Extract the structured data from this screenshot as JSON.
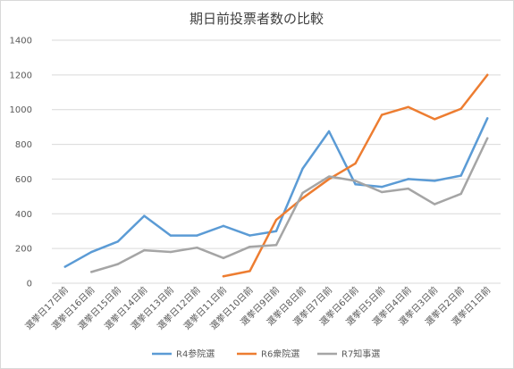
{
  "chart_data": {
    "type": "line",
    "title": "期日前投票者数の比較",
    "xlabel": "",
    "ylabel": "",
    "ylim": [
      0,
      1400
    ],
    "yticks": [
      0,
      200,
      400,
      600,
      800,
      1000,
      1200,
      1400
    ],
    "grid": true,
    "legend_position": "bottom",
    "categories": [
      "選挙日17日前",
      "選挙日16日前",
      "選挙日15日前",
      "選挙日14日前",
      "選挙日13日前",
      "選挙日12日前",
      "選挙日11日前",
      "選挙日10日前",
      "選挙日9日前",
      "選挙日8日前",
      "選挙日7日前",
      "選挙日6日前",
      "選挙日5日前",
      "選挙日4日前",
      "選挙日3日前",
      "選挙日2日前",
      "選挙日1日前"
    ],
    "series": [
      {
        "name": "R4参院選",
        "color": "#5b9bd5",
        "values": [
          95,
          180,
          240,
          388,
          275,
          275,
          330,
          275,
          300,
          660,
          875,
          570,
          555,
          600,
          590,
          620,
          950
        ]
      },
      {
        "name": "R6衆院選",
        "color": "#ed7d31",
        "values": [
          null,
          null,
          null,
          null,
          null,
          null,
          40,
          70,
          365,
          490,
          600,
          690,
          970,
          1015,
          945,
          1005,
          1200
        ]
      },
      {
        "name": "R7知事選",
        "color": "#a5a5a5",
        "values": [
          null,
          65,
          110,
          190,
          180,
          205,
          145,
          210,
          220,
          520,
          615,
          590,
          525,
          545,
          455,
          515,
          835
        ]
      }
    ]
  }
}
